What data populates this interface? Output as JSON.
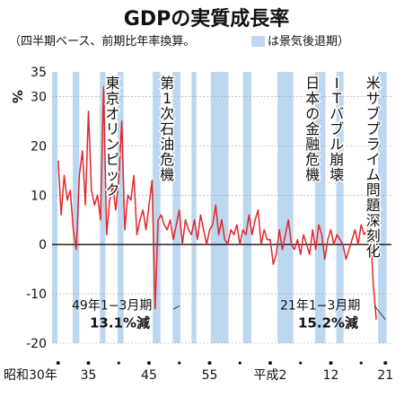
{
  "chart_data": {
    "type": "line",
    "title": "GDPの実質成長率",
    "subtitle": "（四半期ベース、前期比年率換算。",
    "legend_label": "は景気後退期）",
    "y_unit": "%",
    "ylim": [
      -20,
      35
    ],
    "yticks": [
      35,
      30,
      20,
      10,
      0,
      -10,
      -20
    ],
    "xticks": [
      "昭和30年",
      "35",
      "45",
      "55",
      "平成2",
      "12",
      "21"
    ],
    "annotations": [
      {
        "text": "東京オリンピック",
        "x": 1964
      },
      {
        "text": "第1次石油危機",
        "x": 1973
      },
      {
        "text": "日本の金融危機",
        "x": 1997
      },
      {
        "text": "ITバブル崩壊",
        "x": 2001
      },
      {
        "text": "米サブプライム問題深刻化",
        "x": 2007
      }
    ],
    "callouts": [
      {
        "line1": "49年1−3月期",
        "line2": "13.1%減",
        "x": 1974.0,
        "y": -13.1
      },
      {
        "line1": "21年1−3月期",
        "line2": "15.2%減",
        "x": 2009.0,
        "y": -15.2
      }
    ],
    "recessions": [
      [
        1954.0,
        1954.9
      ],
      [
        1957.4,
        1958.5
      ],
      [
        1961.9,
        1962.8
      ],
      [
        1964.8,
        1965.8
      ],
      [
        1970.6,
        1971.9
      ],
      [
        1973.9,
        1975.2
      ],
      [
        1977.0,
        1977.8
      ],
      [
        1980.2,
        1983.1
      ],
      [
        1985.5,
        1986.9
      ],
      [
        1991.2,
        1993.8
      ],
      [
        1997.4,
        1999.1
      ],
      [
        2000.9,
        2002.1
      ],
      [
        2007.8,
        2009.2
      ]
    ],
    "series": [
      {
        "x_start": 1955.0,
        "x_step": 0.5,
        "values": [
          17,
          6,
          14,
          9,
          11,
          3,
          -1,
          14,
          19,
          8,
          27,
          11,
          8,
          10,
          5,
          32,
          2,
          9,
          12,
          7,
          13,
          25,
          3,
          10,
          9,
          14,
          2,
          5,
          7,
          3,
          8,
          13,
          -13,
          5,
          6,
          4,
          3,
          5,
          1,
          4,
          7,
          0,
          5,
          3,
          2,
          5,
          1,
          6,
          3,
          0,
          3,
          4,
          8,
          2,
          5,
          1,
          0,
          3,
          2,
          4,
          0,
          3,
          2,
          6,
          2,
          5,
          7,
          0,
          3,
          1,
          1,
          -4,
          -2,
          3,
          -1,
          2,
          5,
          0,
          -1,
          1,
          -2,
          2,
          0,
          -2,
          3,
          -1,
          4,
          2,
          -3,
          1,
          3,
          0,
          2,
          1,
          0,
          -3,
          -1,
          1,
          3,
          0,
          4,
          2,
          3,
          4,
          -8,
          -15.2
        ]
      }
    ]
  }
}
